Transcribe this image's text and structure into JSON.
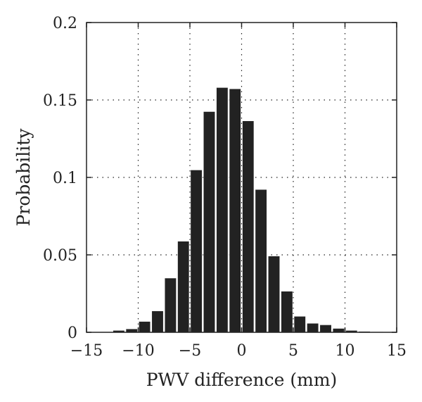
{
  "chart_data": {
    "type": "bar",
    "title": "",
    "xlabel": "PWV difference (mm)",
    "ylabel": "Probability",
    "xlim": [
      -15,
      15
    ],
    "ylim": [
      0,
      0.2
    ],
    "xticks": [
      -15,
      -10,
      -5,
      0,
      5,
      10,
      15
    ],
    "xtick_labels": [
      "−15",
      "−10",
      "−5",
      "0",
      "5",
      "10",
      "15"
    ],
    "yticks": [
      0,
      0.05,
      0.1,
      0.15,
      0.2
    ],
    "ytick_labels": [
      "0",
      "0.05",
      "0.1",
      "0.15",
      "0.2"
    ],
    "grid": true,
    "bar_width": 1.25,
    "bar_color": "#222222",
    "x": [
      -13.13,
      -11.88,
      -10.63,
      -9.38,
      -8.13,
      -6.88,
      -5.63,
      -4.38,
      -3.13,
      -1.88,
      -0.63,
      0.63,
      1.88,
      3.13,
      4.38,
      5.63,
      6.88,
      8.13,
      9.38,
      10.63,
      11.88,
      13.13
    ],
    "values": [
      0.0003,
      0.0012,
      0.0022,
      0.007,
      0.0138,
      0.035,
      0.0588,
      0.1048,
      0.1425,
      0.158,
      0.1572,
      0.1365,
      0.0922,
      0.0492,
      0.0265,
      0.0103,
      0.0058,
      0.0048,
      0.0025,
      0.0012,
      0.0006,
      0.0003
    ]
  }
}
